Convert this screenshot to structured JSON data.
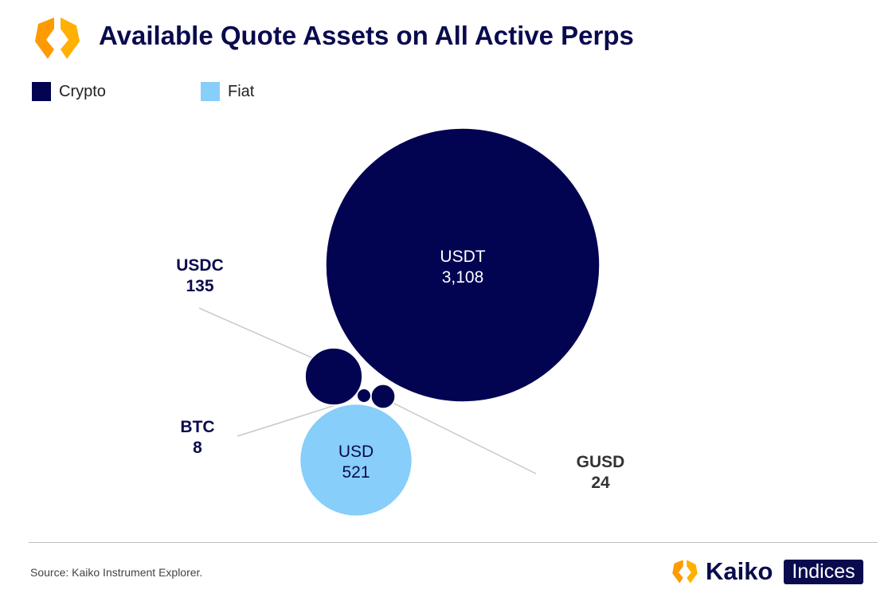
{
  "title": "Available Quote Assets on All Active Perps",
  "source": "Source: Kaiko Instrument Explorer.",
  "brand": {
    "name": "Kaiko",
    "product": "Indices"
  },
  "colors": {
    "crypto": "#020452",
    "fiat": "#87cefa",
    "title": "#0a0a4e"
  },
  "chart_data": {
    "type": "bubble",
    "title": "Available Quote Assets on All Active Perps",
    "legend": [
      {
        "name": "Crypto",
        "color": "#020452"
      },
      {
        "name": "Fiat",
        "color": "#87cefa"
      }
    ],
    "legend_position": "top-left",
    "points": [
      {
        "label": "USDT",
        "value": 3108,
        "value_label": "3,108",
        "category": "Crypto"
      },
      {
        "label": "USD",
        "value": 521,
        "value_label": "521",
        "category": "Fiat"
      },
      {
        "label": "USDC",
        "value": 135,
        "value_label": "135",
        "category": "Crypto"
      },
      {
        "label": "GUSD",
        "value": 24,
        "value_label": "24",
        "category": "Crypto"
      },
      {
        "label": "BTC",
        "value": 8,
        "value_label": "8",
        "category": "Crypto"
      }
    ]
  }
}
